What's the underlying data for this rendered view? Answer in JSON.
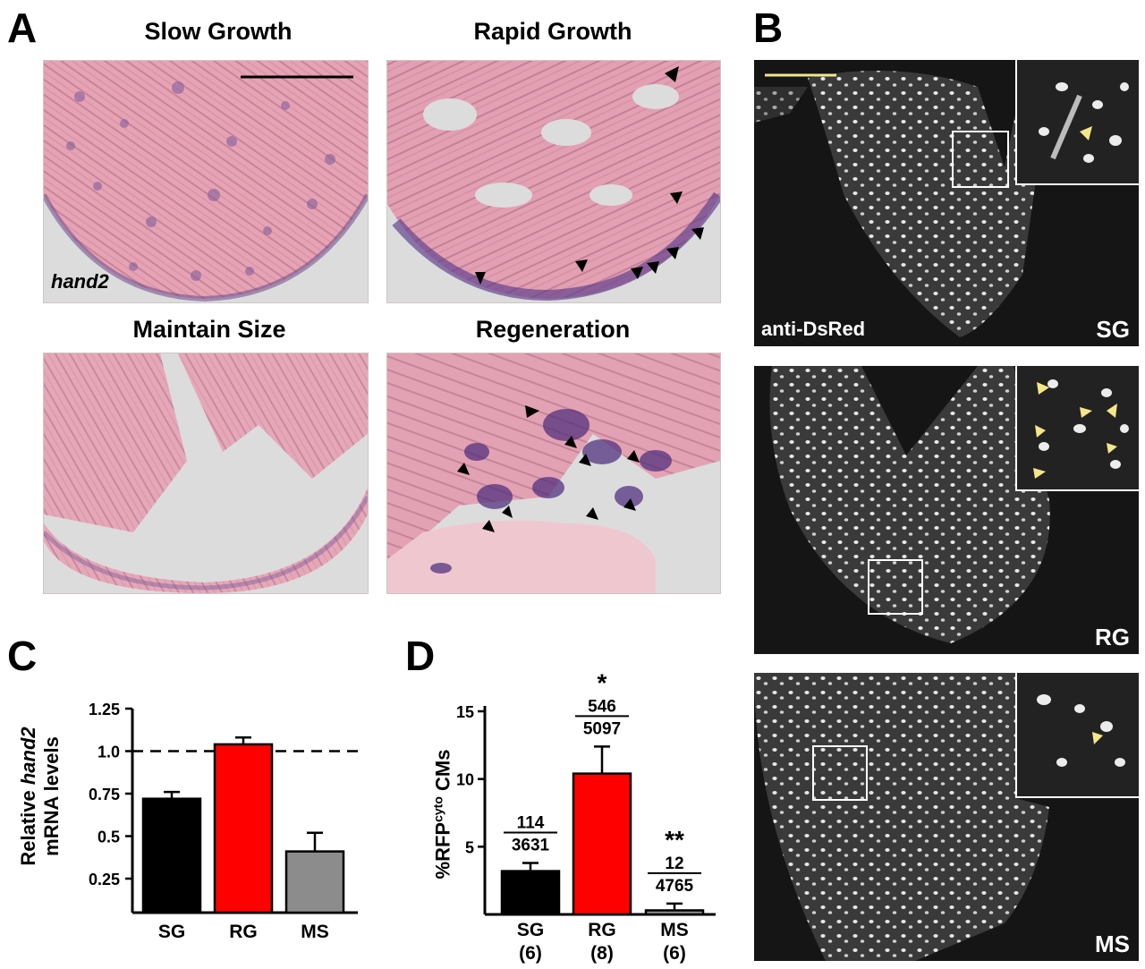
{
  "panel_A": {
    "letter": "A",
    "images": [
      {
        "title": "Slow Growth",
        "label": "hand2"
      },
      {
        "title": "Rapid Growth"
      },
      {
        "title": "Maintain Size"
      },
      {
        "title": "Regeneration"
      }
    ]
  },
  "panel_B": {
    "letter": "B",
    "stain_label": "anti-DsRed",
    "images": [
      {
        "label": "SG"
      },
      {
        "label": "RG"
      },
      {
        "label": "MS"
      }
    ],
    "colors": {
      "scale_bar": "#f0e68c",
      "arrowhead": "#f5e68a"
    }
  },
  "panel_C": {
    "letter": "C",
    "ylabel_line1_prefix": "Relative ",
    "ylabel_gene": "hand2",
    "ylabel_line2": "mRNA levels"
  },
  "panel_D": {
    "letter": "D",
    "ylabel_prefix": "%RFP",
    "ylabel_sup": "cyto",
    "ylabel_suffix": " CMs"
  },
  "chart_data": [
    {
      "type": "bar",
      "panel": "C",
      "categories": [
        "SG",
        "RG",
        "MS"
      ],
      "values": [
        0.72,
        1.04,
        0.41
      ],
      "errors": [
        0.04,
        0.04,
        0.11
      ],
      "colors": [
        "#000000",
        "#ff0000",
        "#8c8c8c"
      ],
      "ylim": [
        0.05,
        1.25
      ],
      "yticks": [
        "1.25",
        "1.0",
        "0.75",
        "0.5",
        "0.25"
      ],
      "ytick_values": [
        1.25,
        1.0,
        0.75,
        0.5,
        0.25
      ],
      "reference_line": 1.0
    },
    {
      "type": "bar",
      "panel": "D",
      "categories": [
        "SG",
        "RG",
        "MS"
      ],
      "n_labels": [
        "(6)",
        "(8)",
        "(6)"
      ],
      "values": [
        3.2,
        10.4,
        0.3
      ],
      "errors": [
        0.6,
        2.0,
        0.5
      ],
      "colors": [
        "#000000",
        "#ff0000",
        "#8c8c8c"
      ],
      "ylim": [
        0,
        15
      ],
      "yticks": [
        "15",
        "10",
        "5"
      ],
      "ytick_values": [
        15,
        10,
        5
      ],
      "fractions": [
        {
          "num": "114",
          "den": "3631",
          "sig": ""
        },
        {
          "num": "546",
          "den": "5097",
          "sig": "*"
        },
        {
          "num": "12",
          "den": "4765",
          "sig": "**"
        }
      ]
    }
  ]
}
